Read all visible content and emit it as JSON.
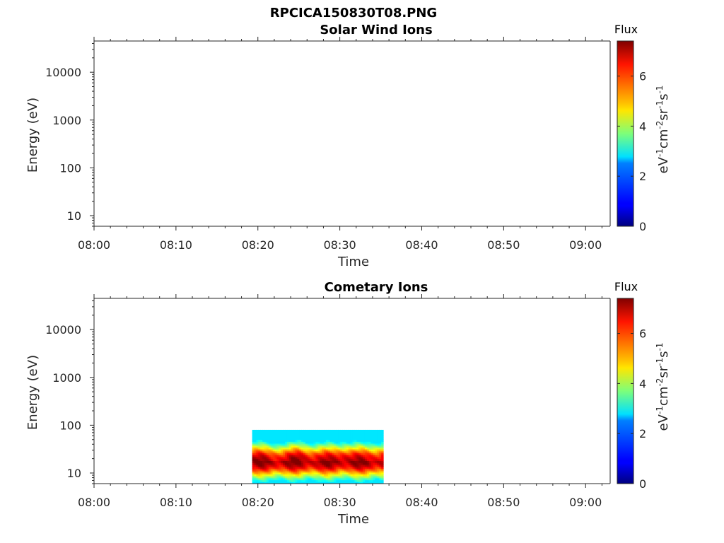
{
  "page": {
    "main_title": "RPCICA150830T08.PNG"
  },
  "chart_data": [
    {
      "type": "heatmap",
      "title": "Solar Wind Ions",
      "xlabel": "Time",
      "ylabel": "Energy (eV)",
      "x_ticks": [
        "08:00",
        "08:10",
        "08:20",
        "08:30",
        "08:40",
        "08:50",
        "09:00"
      ],
      "x_range_min": [
        0,
        63
      ],
      "y_scale": "log",
      "y_ticks": [
        10,
        100,
        1000,
        10000
      ],
      "y_tick_labels": [
        "10",
        "100",
        "1000",
        "10000"
      ],
      "ylim": [
        6,
        45000
      ],
      "data_present": false,
      "colorbar": {
        "title": "Flux",
        "label": "eV-1cm-2sr-1s-1",
        "range": [
          0,
          7.4
        ],
        "ticks": [
          0,
          2,
          4,
          6
        ],
        "tick_labels": [
          "0",
          "2",
          "4",
          "6"
        ],
        "colormap": "jet"
      }
    },
    {
      "type": "heatmap",
      "title": "Cometary Ions",
      "xlabel": "Time",
      "ylabel": "Energy (eV)",
      "x_ticks": [
        "08:00",
        "08:10",
        "08:20",
        "08:30",
        "08:40",
        "08:50",
        "09:00"
      ],
      "x_range_min": [
        0,
        63
      ],
      "y_scale": "log",
      "y_ticks": [
        10,
        100,
        1000,
        10000
      ],
      "y_tick_labels": [
        "10",
        "100",
        "1000",
        "10000"
      ],
      "ylim": [
        6,
        45000
      ],
      "data_present": true,
      "data_time_range_min": [
        19.3,
        35.3
      ],
      "data_energy_range_ev": [
        6,
        80
      ],
      "peak_energy_ev": 18,
      "peak_flux": 7.2,
      "colorbar": {
        "title": "Flux",
        "label": "eV-1cm-2sr-1s-1",
        "range": [
          0,
          7.4
        ],
        "ticks": [
          0,
          2,
          4,
          6
        ],
        "tick_labels": [
          "0",
          "2",
          "4",
          "6"
        ],
        "colormap": "jet"
      }
    }
  ]
}
